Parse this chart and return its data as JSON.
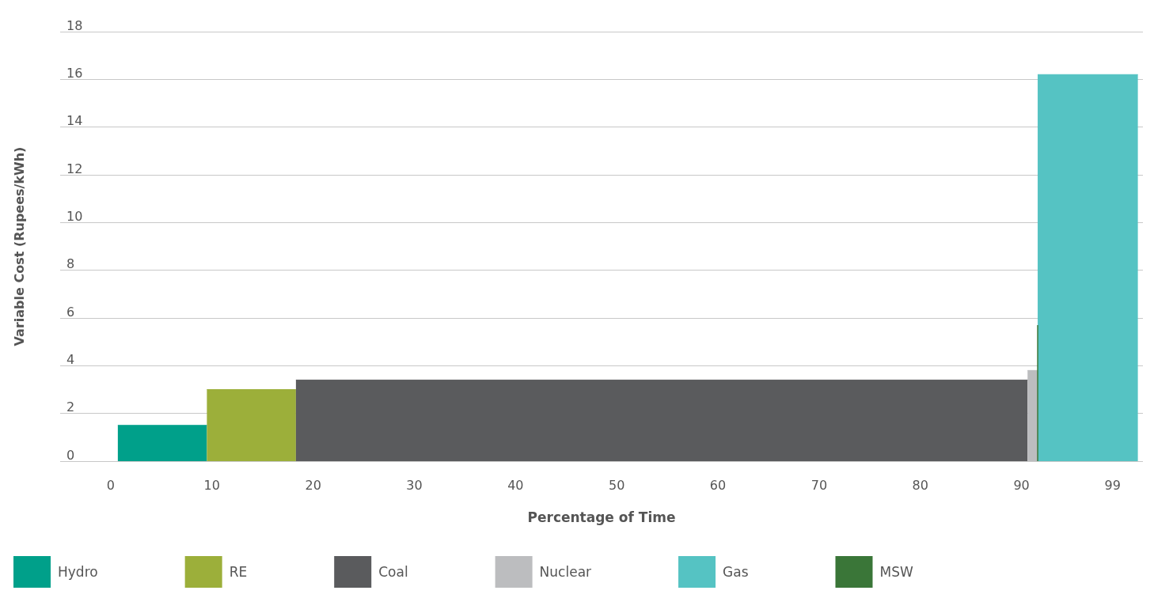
{
  "chart_data": {
    "type": "area",
    "xlabel": "Percentage of Time",
    "ylabel": "Variable Cost (Rupees/kWh)",
    "xlim": [
      -5,
      102
    ],
    "xticks": [
      0,
      10,
      20,
      30,
      40,
      50,
      60,
      70,
      80,
      90,
      99
    ],
    "ylim": [
      0,
      18
    ],
    "yticks": [
      0,
      2,
      4,
      6,
      8,
      10,
      12,
      14,
      16,
      18
    ],
    "grid": "y",
    "legend": "bottom left",
    "marker": "none",
    "series": [
      {
        "name": "Hydro",
        "color": "#00a08a",
        "x": [
          0.7,
          9.5
        ],
        "values": [
          1.5,
          1.5
        ]
      },
      {
        "name": "RE",
        "color": "#9caf3a",
        "x": [
          9.5,
          18.3
        ],
        "values": [
          3.0,
          3.0
        ]
      },
      {
        "name": "Coal",
        "color": "#5a5b5d",
        "x": [
          18.3,
          90.6
        ],
        "values": [
          3.4,
          3.4
        ]
      },
      {
        "name": "Nuclear",
        "color": "#bcbdbf",
        "x": [
          90.6,
          91.6
        ],
        "values": [
          3.8,
          3.8
        ]
      },
      {
        "name": "Gas",
        "color": "#55c3c3",
        "x": [
          91.6,
          101.5
        ],
        "values": [
          16.2,
          16.2
        ]
      },
      {
        "name": "MSW",
        "type": "line",
        "color": "#3a7638",
        "x": [
          91.6,
          91.6
        ],
        "values": [
          0,
          5.7
        ]
      }
    ]
  }
}
